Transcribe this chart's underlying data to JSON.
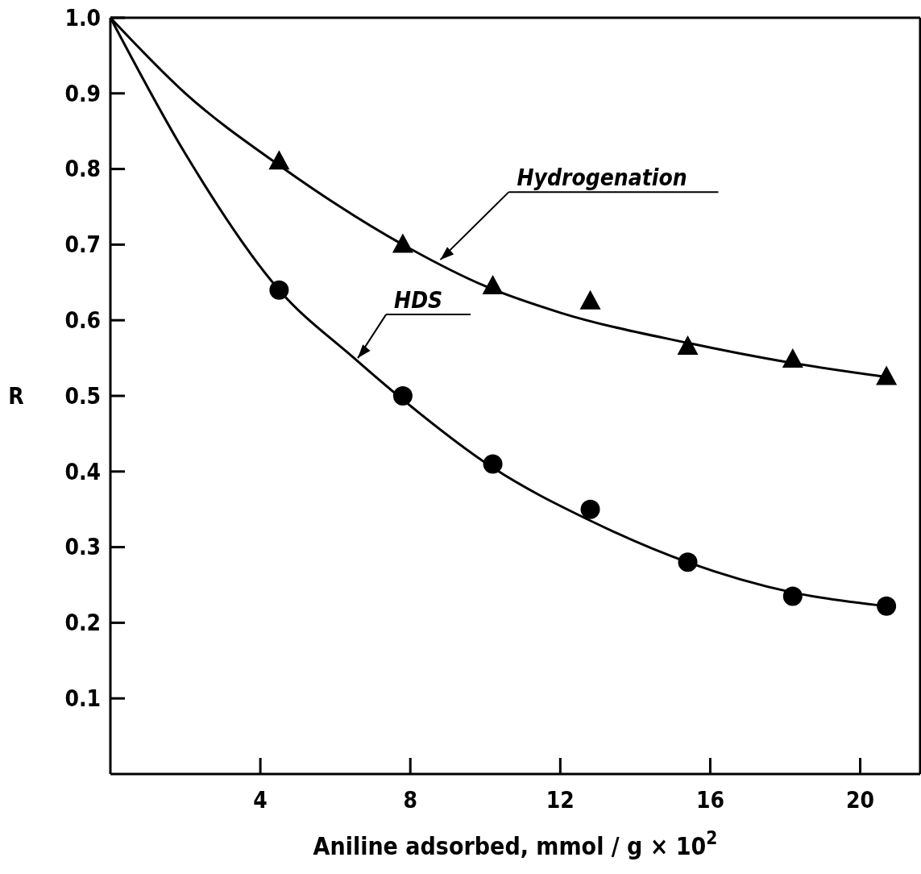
{
  "chart_data": {
    "type": "scatter",
    "xlabel": "Aniline adsorbed, mmol / g × 10$^{2}$",
    "ylabel": "R",
    "xlim": [
      0,
      21.6
    ],
    "ylim": [
      0,
      1.0
    ],
    "xticks": [
      4,
      8,
      12,
      16,
      20
    ],
    "yticks": [
      0.1,
      0.2,
      0.3,
      0.4,
      0.5,
      0.6,
      0.7,
      0.8,
      0.9,
      {
        "value": 1,
        "label": "1.0"
      }
    ],
    "grid": false,
    "series": [
      {
        "marker": "triangle",
        "color": "#000000",
        "x": [
          4.5,
          7.8,
          10.2,
          12.8,
          15.4,
          18.2,
          20.7
        ],
        "values": [
          0.81,
          0.7,
          0.645,
          0.625,
          0.565,
          0.548,
          0.525
        ]
      },
      {
        "marker": "circle",
        "color": "#000000",
        "x": [
          4.5,
          7.8,
          10.2,
          12.8,
          15.4,
          18.2,
          20.7
        ],
        "values": [
          0.64,
          0.5,
          0.41,
          0.35,
          0.28,
          0.235,
          0.222
        ]
      },
      {
        "type": "line",
        "marker": "none",
        "line_style": "solid",
        "color": "#000000",
        "x": [
          0,
          2,
          4.5,
          7.8,
          10,
          12,
          15.4,
          18,
          20.7
        ],
        "values": [
          1.0,
          0.9,
          0.805,
          0.7,
          0.645,
          0.61,
          0.57,
          0.545,
          0.525
        ]
      },
      {
        "type": "line",
        "marker": "none",
        "line_style": "solid",
        "color": "#000000",
        "x": [
          0,
          2,
          4.5,
          6.5,
          7.8,
          10.2,
          12.8,
          15.4,
          18.2,
          20.7
        ],
        "values": [
          1.0,
          0.82,
          0.64,
          0.55,
          0.495,
          0.405,
          0.335,
          0.28,
          0.24,
          0.222
        ]
      }
    ],
    "annotations": [
      {
        "text": "Hydrogenation",
        "x": 8.8,
        "y": 0.68
      },
      {
        "text": "HDS",
        "x": 6.6,
        "y": 0.55
      }
    ]
  }
}
